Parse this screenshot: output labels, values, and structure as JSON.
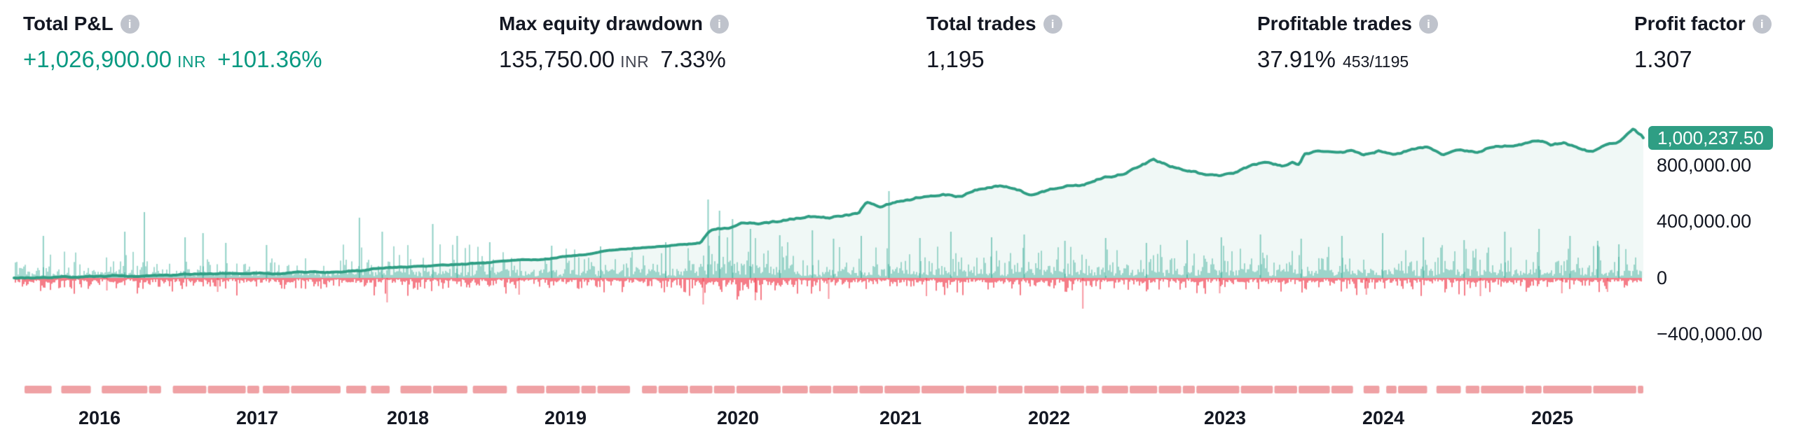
{
  "header_stats": [
    {
      "label": "Total P&L",
      "value": "+1,026,900.00",
      "unit": "INR",
      "extra": "+101.36%",
      "positive": true
    },
    {
      "label": "Max equity drawdown",
      "value": "135,750.00",
      "unit": "INR",
      "extra": "7.33%"
    },
    {
      "label": "Total trades",
      "value": "1,195"
    },
    {
      "label": "Profitable trades",
      "value": "37.91%",
      "sub": "453/1195"
    },
    {
      "label": "Profit factor",
      "value": "1.307"
    }
  ],
  "info_icon_glyph": "i",
  "colors": {
    "accent_teal": "#2f9e84",
    "positive_text": "#089981",
    "bar_green": "rgba(8,153,129,0.45)",
    "bar_red": "rgba(242,54,69,0.5)",
    "fill_mint": "rgba(47,158,132,0.075)",
    "strip_pink": "#efa1a4",
    "text_dark": "#131722",
    "icon_gray": "#bfc3cc",
    "badge_text": "#ffffff"
  },
  "chart_data": {
    "type": "line",
    "title": "Strategy equity curve with per-trade P&L bars",
    "currency": "INR",
    "ylim": [
      -400000,
      1100000
    ],
    "grid": false,
    "legend": "none",
    "y_ticks": [
      {
        "value": 800000,
        "label": "800,000.00"
      },
      {
        "value": 400000,
        "label": "400,000.00"
      },
      {
        "value": 0,
        "label": "0"
      },
      {
        "value": -400000,
        "label": "−400,000.00"
      }
    ],
    "last_value": 1000237.5,
    "last_value_label": "1,000,237.50",
    "x_years": [
      "2016",
      "2017",
      "2018",
      "2019",
      "2020",
      "2021",
      "2022",
      "2023",
      "2024",
      "2025"
    ],
    "equity_series": [
      [
        0.0,
        3000
      ],
      [
        0.026,
        8000
      ],
      [
        0.056,
        13000
      ],
      [
        0.086,
        18000
      ],
      [
        0.12,
        26000
      ],
      [
        0.155,
        33000
      ],
      [
        0.185,
        40000
      ],
      [
        0.215,
        48000
      ],
      [
        0.222,
        65000
      ],
      [
        0.249,
        78000
      ],
      [
        0.275,
        95000
      ],
      [
        0.301,
        115000
      ],
      [
        0.327,
        140000
      ],
      [
        0.353,
        175000
      ],
      [
        0.363,
        200000
      ],
      [
        0.387,
        222000
      ],
      [
        0.413,
        242000
      ],
      [
        0.421,
        252000
      ],
      [
        0.426,
        330000
      ],
      [
        0.432,
        360000
      ],
      [
        0.439,
        345000
      ],
      [
        0.447,
        392000
      ],
      [
        0.458,
        398000
      ],
      [
        0.465,
        405000
      ],
      [
        0.477,
        428000
      ],
      [
        0.49,
        450000
      ],
      [
        0.501,
        438000
      ],
      [
        0.518,
        450000
      ],
      [
        0.523,
        530000
      ],
      [
        0.531,
        515000
      ],
      [
        0.546,
        558000
      ],
      [
        0.559,
        592000
      ],
      [
        0.571,
        602000
      ],
      [
        0.58,
        585000
      ],
      [
        0.594,
        645000
      ],
      [
        0.606,
        668000
      ],
      [
        0.614,
        648000
      ],
      [
        0.624,
        600000
      ],
      [
        0.637,
        645000
      ],
      [
        0.647,
        665000
      ],
      [
        0.657,
        655000
      ],
      [
        0.664,
        695000
      ],
      [
        0.675,
        725000
      ],
      [
        0.68,
        740000
      ],
      [
        0.69,
        800000
      ],
      [
        0.699,
        845000
      ],
      [
        0.71,
        805000
      ],
      [
        0.72,
        775000
      ],
      [
        0.729,
        750000
      ],
      [
        0.742,
        740000
      ],
      [
        0.75,
        748000
      ],
      [
        0.759,
        795000
      ],
      [
        0.768,
        815000
      ],
      [
        0.778,
        800000
      ],
      [
        0.785,
        818000
      ],
      [
        0.789,
        805000
      ],
      [
        0.792,
        880000
      ],
      [
        0.8,
        895000
      ],
      [
        0.813,
        885000
      ],
      [
        0.821,
        900000
      ],
      [
        0.828,
        870000
      ],
      [
        0.838,
        900000
      ],
      [
        0.847,
        868000
      ],
      [
        0.858,
        915000
      ],
      [
        0.869,
        930000
      ],
      [
        0.877,
        890000
      ],
      [
        0.885,
        925000
      ],
      [
        0.897,
        885000
      ],
      [
        0.905,
        918000
      ],
      [
        0.914,
        938000
      ],
      [
        0.923,
        960000
      ],
      [
        0.936,
        980000
      ],
      [
        0.944,
        955000
      ],
      [
        0.951,
        975000
      ],
      [
        0.96,
        938000
      ],
      [
        0.968,
        905000
      ],
      [
        0.976,
        935000
      ],
      [
        0.985,
        970000
      ],
      [
        0.994,
        1055000
      ],
      [
        0.997,
        1020000
      ],
      [
        1.0,
        1000237.5
      ]
    ],
    "trade_bars": {
      "count": 1195,
      "seed": 421195,
      "tall_green_spikes": [
        [
          0.018,
          300000
        ],
        [
          0.068,
          330000
        ],
        [
          0.08,
          470000
        ],
        [
          0.105,
          290000
        ],
        [
          0.116,
          320000
        ],
        [
          0.13,
          250000
        ],
        [
          0.155,
          235000
        ],
        [
          0.212,
          430000
        ],
        [
          0.226,
          330000
        ],
        [
          0.257,
          385000
        ],
        [
          0.272,
          300000
        ],
        [
          0.292,
          255000
        ],
        [
          0.33,
          230000
        ],
        [
          0.36,
          225000
        ],
        [
          0.4,
          255000
        ],
        [
          0.426,
          560000
        ],
        [
          0.433,
          480000
        ],
        [
          0.441,
          420000
        ],
        [
          0.452,
          350000
        ],
        [
          0.47,
          305000
        ],
        [
          0.49,
          340000
        ],
        [
          0.503,
          280000
        ],
        [
          0.52,
          300000
        ],
        [
          0.537,
          620000
        ],
        [
          0.556,
          285000
        ],
        [
          0.575,
          330000
        ],
        [
          0.6,
          290000
        ],
        [
          0.62,
          310000
        ],
        [
          0.645,
          265000
        ],
        [
          0.67,
          285000
        ],
        [
          0.695,
          250000
        ],
        [
          0.72,
          270000
        ],
        [
          0.741,
          290000
        ],
        [
          0.765,
          310000
        ],
        [
          0.79,
          280000
        ],
        [
          0.815,
          300000
        ],
        [
          0.84,
          320000
        ],
        [
          0.865,
          290000
        ],
        [
          0.89,
          270000
        ],
        [
          0.915,
          330000
        ],
        [
          0.936,
          350000
        ],
        [
          0.955,
          300000
        ],
        [
          0.972,
          265000
        ],
        [
          0.985,
          240000
        ]
      ],
      "deep_red_spikes": [
        [
          0.057,
          90000
        ],
        [
          0.125,
          100000
        ],
        [
          0.229,
          175000
        ],
        [
          0.31,
          120000
        ],
        [
          0.423,
          190000
        ],
        [
          0.455,
          160000
        ],
        [
          0.5,
          150000
        ],
        [
          0.56,
          130000
        ],
        [
          0.656,
          220000
        ],
        [
          0.74,
          110000
        ],
        [
          0.83,
          120000
        ],
        [
          0.9,
          130000
        ],
        [
          0.95,
          110000
        ],
        [
          0.978,
          100000
        ]
      ]
    },
    "activity_strip": {
      "seed": 77,
      "color": "#efa1a4"
    }
  }
}
